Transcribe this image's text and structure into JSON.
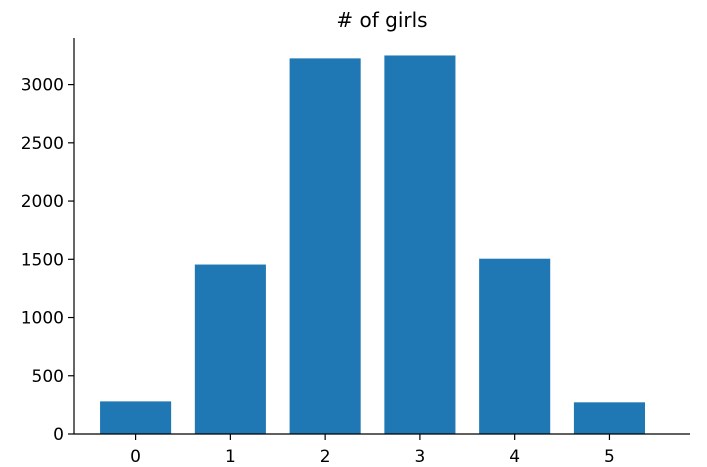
{
  "chart_data": {
    "type": "bar",
    "title": "# of girls",
    "xlabel": "",
    "ylabel": "",
    "categories": [
      "0",
      "1",
      "2",
      "3",
      "4",
      "5"
    ],
    "values": [
      280,
      1455,
      3225,
      3250,
      1505,
      272
    ],
    "ylim": [
      0,
      3400
    ],
    "yticks": [
      0,
      500,
      1000,
      1500,
      2000,
      2500,
      3000
    ],
    "grid": false,
    "legend": "none",
    "bar_color": "#1f77b4",
    "spines": [
      "left",
      "bottom"
    ]
  }
}
